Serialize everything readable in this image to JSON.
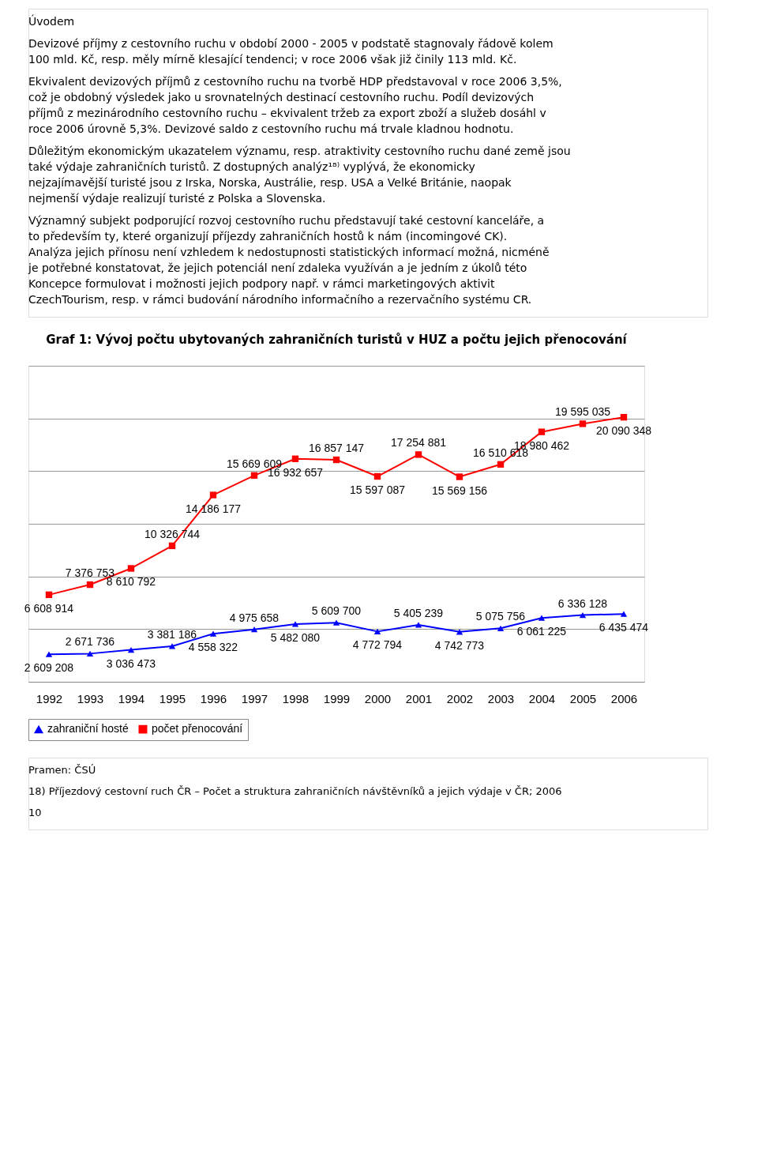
{
  "chart_data": {
    "type": "line",
    "title": "Graf 1: Vývoj počtu ubytovaných zahraničních turistů v HUZ a počtu jejich přenocování",
    "annotations": [
      "Úvodem",
      "Devizové příjmy z cestovního ruchu v období 2000 - 2005 v podstatě stagnovaly řádově kolem 100 mld. Kč, resp. měly mírně klesající tendenci; v roce 2006 však již činily 113 mld. Kč.",
      "Ekvivalent devizových příjmů z cestovního ruchu na tvorbě HDP představoval v roce 2006 3,5%, což je obdobný výsledek jako u srovnatelných destinací cestovního ruchu. Podíl devizových příjmů z mezinárodního cestovního ruchu – ekvivalent tržeb za export zboží a služeb dosáhl v roce 2006 úrovně 5,3%. Devizové saldo z cestovního ruchu má trvale kladnou hodnotu.",
      "Důležitým ekonomickým ukazatelem významu, resp. atraktivity cestovního ruchu dané země jsou také výdaje zahraničních turistů. Z dostupných analýz¹⁸⁾ vyplývá, že ekonomicky nejzajímavější turisté jsou z Irska, Norska, Austrálie, resp. USA a Velké Británie, naopak nejmenší výdaje realizují turisté z Polska a Slovenska.",
      "Významný subjekt podporující rozvoj cestovního ruchu představují také cestovní kanceláře, a to především ty, které organizují příjezdy zahraničních hostů k nám (incomingové CK). Analýza jejich přínosu není vzhledem k nedostupnosti statistických informací možná, nicméně je potřebné konstatovat, že jejich potenciál není zdaleka využíván a je jedním z úkolů této Koncepce formulovat i možnosti jejich podpory např. v rámci marketingových aktivit CzechTourism, resp. v rámci budování národního informačního a rezervačního systému CR.",
      "Pramen: ČSÚ",
      "18) Příjezdový cestovní ruch ČR – Počet a struktura zahraničních návštěvníků a jejich výdaje v ČR; 2006",
      "10"
    ],
    "categories": [
      "1992",
      "1993",
      "1994",
      "1995",
      "1996",
      "1997",
      "1998",
      "1999",
      "2000",
      "2001",
      "2002",
      "2003",
      "2004",
      "2005",
      "2006"
    ],
    "series": [
      {
        "name": "zahraniční hosté",
        "color": "#0000ff",
        "marker": "triangle",
        "values": [
          2609208,
          2671736,
          3036473,
          3381186,
          4558322,
          4975658,
          5482080,
          5609700,
          4772794,
          5405239,
          4742773,
          5075756,
          6061225,
          6336128,
          6435474
        ]
      },
      {
        "name": "počet přenocování",
        "color": "#ff0000",
        "marker": "square",
        "axis": "y2",
        "values": [
          6608914,
          7376753,
          8610792,
          10326744,
          14186177,
          15669609,
          16932657,
          16857147,
          15597087,
          17254881,
          15569156,
          16510618,
          18980462,
          19595035,
          20090348
        ]
      }
    ],
    "ylim": [
      0,
      30000000
    ],
    "yticks": [
      {
        "value": 0,
        "label": null
      },
      {
        "value": 5000000,
        "label": null
      },
      {
        "value": 10000000,
        "label": null
      },
      {
        "value": 15000000,
        "label": null
      },
      {
        "value": 20000000,
        "label": null
      },
      {
        "value": 25000000,
        "label": null
      },
      {
        "value": 30000000,
        "label": null
      }
    ],
    "y2lim": [
      0,
      24000000
    ],
    "tick_labels": "x",
    "grid": "y",
    "legend": "bottom",
    "data_labels": true,
    "line_style": "solid"
  }
}
